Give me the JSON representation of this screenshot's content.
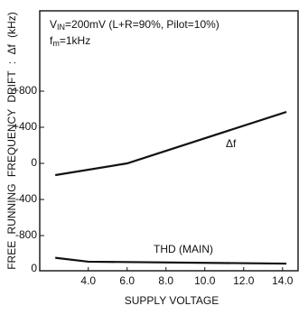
{
  "chart_data": {
    "type": "line",
    "x_label": "SUPPLY VOLTAGE",
    "y_label": "FREE RUNNING FREQUENCY DRIFT : Δf (kHz)",
    "condition_1": [
      "V",
      "IN",
      "=200mV (L+R=90%, Pilot=10%)"
    ],
    "condition_2": [
      "f",
      "m",
      "=1kHz"
    ],
    "xlim": [
      1.5,
      14.8
    ],
    "xticks": [
      {
        "value": 4,
        "label": "4.0"
      },
      {
        "value": 6,
        "label": "6.0"
      },
      {
        "value": 8,
        "label": "8.0"
      },
      {
        "value": 10,
        "label": "10.0"
      },
      {
        "value": 12,
        "label": "12.0"
      },
      {
        "value": 14,
        "label": "14.0"
      }
    ],
    "ylim": [
      -1190,
      1690
    ],
    "yticks": [
      {
        "value": 800,
        "label": "+800"
      },
      {
        "value": 400,
        "label": "+400"
      },
      0,
      -400,
      -800
    ],
    "y2lim": [
      0,
      20
    ],
    "y2ticks": [
      0
    ],
    "grid": false,
    "series": [
      {
        "name": "Δf",
        "color": "#111111",
        "x": [
          2.3,
          6.0,
          14.2
        ],
        "values": [
          -130,
          0,
          570
        ]
      },
      {
        "name": "THD (MAIN)",
        "color": "#111111",
        "axis": "y2",
        "x": [
          2.3,
          4.0,
          14.2
        ],
        "values": [
          1.0,
          0.7,
          0.55
        ]
      }
    ]
  }
}
